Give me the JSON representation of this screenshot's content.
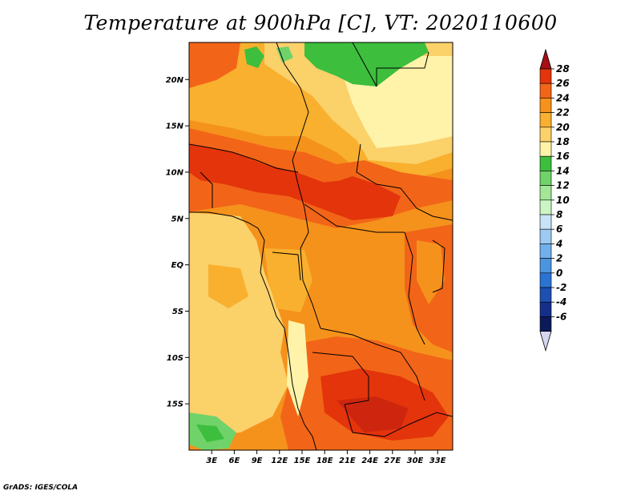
{
  "title": "Temperature at 900hPa [C], VT: 2020110600",
  "footer": "GrADS: IGES/COLA",
  "map": {
    "lon_range": [
      0,
      35
    ],
    "lat_range": [
      -20,
      24
    ],
    "lat_ticks": [
      "20N",
      "15N",
      "10N",
      "5N",
      "EQ",
      "5S",
      "10S",
      "15S"
    ],
    "lon_ticks": [
      "3E",
      "6E",
      "9E",
      "12E",
      "15E",
      "18E",
      "21E",
      "24E",
      "27E",
      "30E",
      "33E"
    ]
  },
  "colorbar": {
    "labels": [
      "28",
      "26",
      "24",
      "22",
      "20",
      "18",
      "16",
      "14",
      "12",
      "10",
      "8",
      "6",
      "4",
      "2",
      "0",
      "-2",
      "-4",
      "-6"
    ],
    "colors": [
      "#a50f15",
      "#e3340b",
      "#f26518",
      "#f5921c",
      "#f8b02e",
      "#fbd16a",
      "#fff3a9",
      "#3dbe3d",
      "#6fd36a",
      "#a2e696",
      "#ccf5c4",
      "#c9e3f6",
      "#9dcaf0",
      "#71b0ea",
      "#4b94e0",
      "#2a73d2",
      "#1e4fb2",
      "#142f8a",
      "#0c1a5a",
      "#d6d6f0"
    ]
  }
}
